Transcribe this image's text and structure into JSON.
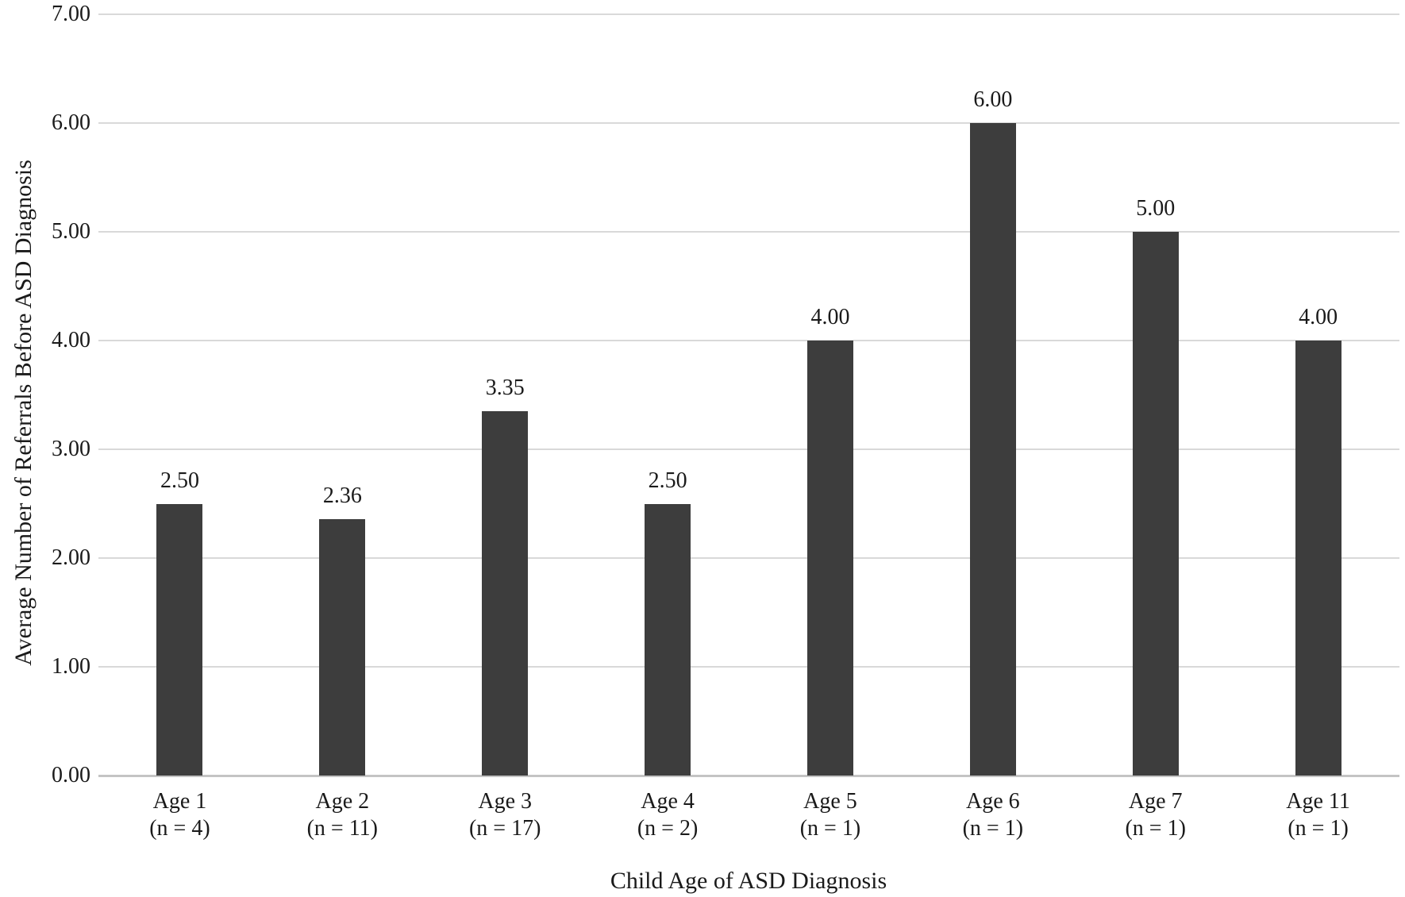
{
  "chart_data": {
    "type": "bar",
    "title": "",
    "xlabel": "Child Age of ASD Diagnosis",
    "ylabel": "Average Number of Referrals Before ASD Diagnosis",
    "ylim": [
      0,
      7
    ],
    "ytick_step": 1,
    "ytick_labels": [
      "0.00",
      "1.00",
      "2.00",
      "3.00",
      "4.00",
      "5.00",
      "6.00",
      "7.00"
    ],
    "grid": true,
    "legend": "none",
    "categories": [
      "Age 1",
      "Age 2",
      "Age 3",
      "Age 4",
      "Age 5",
      "Age 6",
      "Age 7",
      "Age 11"
    ],
    "bars": [
      {
        "age": "Age 1",
        "n": "(n = 4)",
        "value": 2.5,
        "label": "2.50"
      },
      {
        "age": "Age 2",
        "n": "(n = 11)",
        "value": 2.36,
        "label": "2.36"
      },
      {
        "age": "Age 3",
        "n": "(n = 17)",
        "value": 3.35,
        "label": "3.35"
      },
      {
        "age": "Age 4",
        "n": "(n = 2)",
        "value": 2.5,
        "label": "2.50"
      },
      {
        "age": "Age 5",
        "n": "(n = 1)",
        "value": 4.0,
        "label": "4.00"
      },
      {
        "age": "Age 6",
        "n": "(n = 1)",
        "value": 6.0,
        "label": "6.00"
      },
      {
        "age": "Age 7",
        "n": "(n = 1)",
        "value": 5.0,
        "label": "5.00"
      },
      {
        "age": "Age 11",
        "n": "(n = 1)",
        "value": 4.0,
        "label": "4.00"
      }
    ],
    "colors": {
      "bar": "#3d3d3d",
      "gridline": "#d9d9d9",
      "baseline": "#c4c4c4",
      "text": "#1a1a1a",
      "background": "#ffffff"
    }
  }
}
